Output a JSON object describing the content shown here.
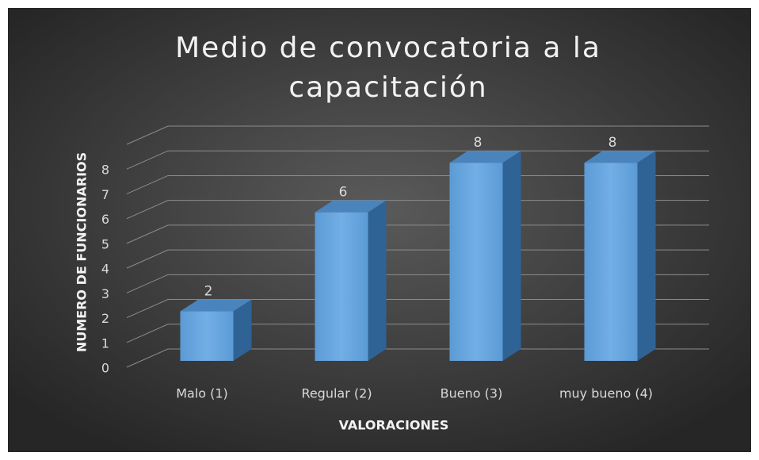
{
  "chart_data": {
    "type": "bar3d",
    "title": [
      "Medio de convocatoria a la",
      "capacitación"
    ],
    "x_label": "VALORACIONES",
    "y_label": "NUMERO DE FUNCIONARIOS",
    "categories": [
      "Malo (1)",
      "Regular (2)",
      "Bueno (3)",
      "muy bueno (4)"
    ],
    "values": [
      2,
      6,
      8,
      8
    ],
    "color": "#5b9bd5",
    "ylim": [
      0,
      9
    ],
    "yticks": [
      0,
      1,
      2,
      3,
      4,
      5,
      6,
      7,
      8
    ],
    "grid": true
  }
}
